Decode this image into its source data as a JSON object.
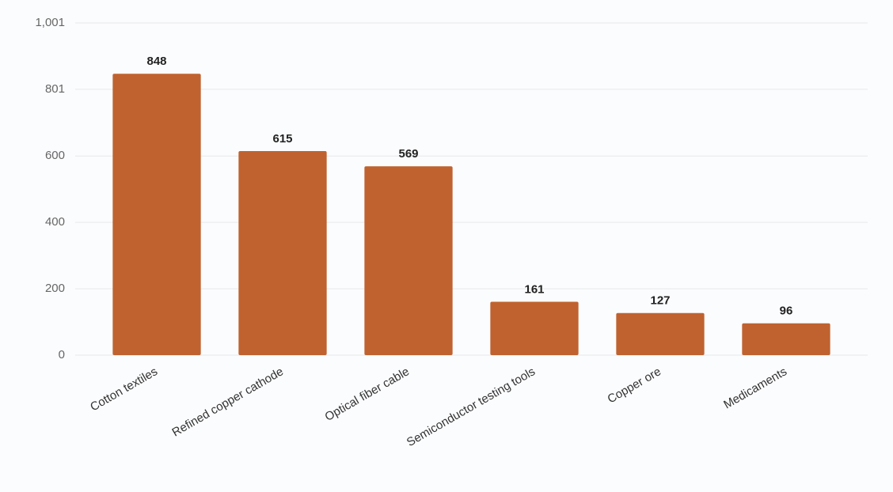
{
  "chart_data": {
    "type": "bar",
    "categories": [
      "Cotton textiles",
      "Refined copper cathode",
      "Optical fiber cable",
      "Semiconductor testing tools",
      "Copper ore",
      "Medicaments"
    ],
    "values": [
      848,
      615,
      569,
      161,
      127,
      96
    ],
    "color": "#c0622f",
    "ylim": [
      0,
      1001
    ],
    "yticks": [
      0,
      200,
      400,
      600,
      801,
      {
        "value": 1001,
        "label": "1,001"
      }
    ],
    "grid": true
  }
}
